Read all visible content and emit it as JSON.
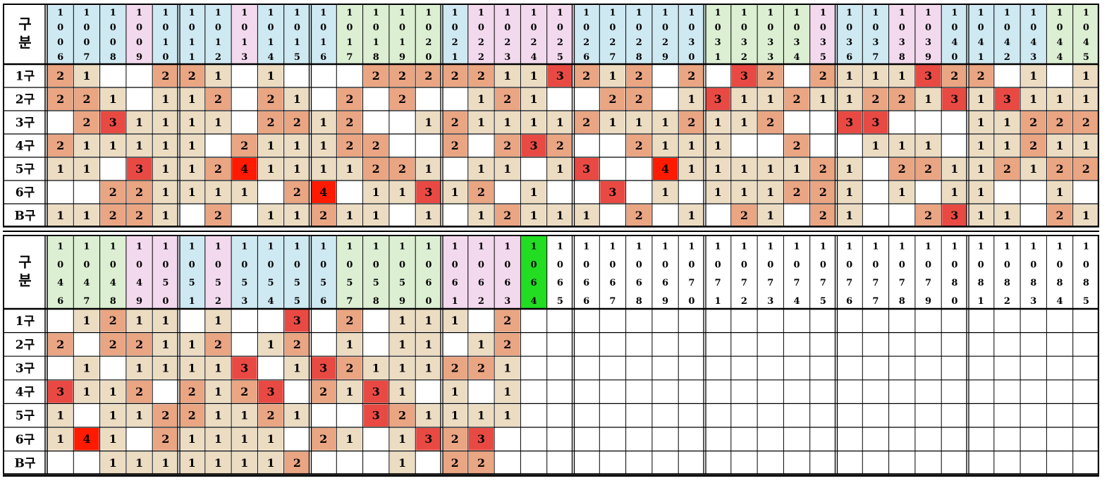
{
  "header_label": "구\n분",
  "row_labels": [
    "1구",
    "2구",
    "3구",
    "4구",
    "5구",
    "6구",
    "B구"
  ],
  "colors": {
    "blue": "#cfe9f2",
    "green": "#dcefd2",
    "pink": "#f3d9ee",
    "level1": "#ecdcc2",
    "level2": "#eaa583",
    "level3": "#e84a43",
    "level4": "#ff1a00",
    "current": "#22dd22",
    "grid": "#000000"
  },
  "blocks": [
    {
      "name": "upper-table",
      "columns": [
        "1006",
        "1007",
        "1008",
        "1009",
        "1010",
        "1011",
        "1012",
        "1013",
        "1014",
        "1015",
        "1016",
        "1017",
        "1018",
        "1019",
        "1020",
        "1021",
        "1022",
        "1023",
        "1024",
        "1025",
        "1026",
        "1027",
        "1028",
        "1029",
        "1030",
        "1031",
        "1032",
        "1033",
        "1034",
        "1035",
        "1036",
        "1037",
        "1038",
        "1039",
        "1040",
        "1041",
        "1042",
        "1043",
        "1044",
        "1045"
      ],
      "column_tints": [
        "b",
        "b",
        "b",
        "p",
        "b",
        "b",
        "b",
        "p",
        "b",
        "b",
        "b",
        "g",
        "g",
        "g",
        "g",
        "b",
        "p",
        "p",
        "p",
        "p",
        "b",
        "b",
        "b",
        "b",
        "b",
        "g",
        "g",
        "g",
        "g",
        "p",
        "b",
        "b",
        "p",
        "p",
        "b",
        "b",
        "b",
        "b",
        "g",
        "g"
      ],
      "current_column": null,
      "rows": [
        [
          2,
          1,
          0,
          0,
          2,
          2,
          1,
          0,
          1,
          0,
          0,
          0,
          2,
          2,
          2,
          2,
          2,
          1,
          1,
          3,
          2,
          1,
          2,
          0,
          2,
          0,
          3,
          2,
          0,
          2,
          1,
          1,
          1,
          3,
          2,
          2,
          0,
          1,
          0,
          1
        ],
        [
          2,
          2,
          1,
          0,
          1,
          1,
          2,
          0,
          2,
          1,
          0,
          2,
          0,
          2,
          0,
          0,
          1,
          2,
          1,
          0,
          0,
          2,
          2,
          0,
          1,
          3,
          1,
          1,
          2,
          1,
          1,
          2,
          2,
          1,
          3,
          1,
          3,
          1,
          1,
          1
        ],
        [
          0,
          2,
          3,
          1,
          1,
          1,
          1,
          0,
          2,
          2,
          1,
          2,
          0,
          0,
          1,
          2,
          1,
          1,
          1,
          1,
          2,
          1,
          1,
          1,
          2,
          1,
          1,
          2,
          0,
          0,
          3,
          3,
          0,
          0,
          0,
          1,
          1,
          2,
          2,
          2
        ],
        [
          2,
          1,
          1,
          1,
          1,
          1,
          0,
          2,
          1,
          1,
          1,
          2,
          2,
          0,
          0,
          2,
          0,
          2,
          3,
          2,
          0,
          0,
          2,
          1,
          1,
          1,
          0,
          0,
          2,
          0,
          0,
          1,
          1,
          1,
          0,
          1,
          1,
          2,
          1,
          1
        ],
        [
          1,
          1,
          0,
          3,
          1,
          1,
          2,
          4,
          1,
          1,
          1,
          1,
          2,
          2,
          1,
          0,
          1,
          1,
          0,
          1,
          3,
          0,
          0,
          4,
          1,
          1,
          1,
          1,
          1,
          2,
          1,
          0,
          2,
          2,
          1,
          1,
          2,
          1,
          2,
          2
        ],
        [
          0,
          0,
          2,
          2,
          1,
          1,
          1,
          1,
          0,
          2,
          4,
          0,
          1,
          1,
          3,
          1,
          2,
          0,
          1,
          0,
          0,
          3,
          0,
          1,
          0,
          1,
          1,
          1,
          2,
          2,
          1,
          0,
          1,
          0,
          1,
          1,
          0,
          0,
          1,
          0
        ],
        [
          1,
          1,
          2,
          2,
          1,
          0,
          2,
          0,
          1,
          1,
          2,
          1,
          1,
          0,
          1,
          0,
          1,
          2,
          1,
          1,
          1,
          0,
          2,
          0,
          1,
          0,
          2,
          1,
          0,
          2,
          1,
          0,
          0,
          2,
          3,
          1,
          1,
          0,
          2,
          1
        ]
      ]
    },
    {
      "name": "lower-table",
      "columns": [
        "1046",
        "1047",
        "1048",
        "1049",
        "1050",
        "1051",
        "1052",
        "1053",
        "1054",
        "1055",
        "1056",
        "1057",
        "1058",
        "1059",
        "1060",
        "1061",
        "1062",
        "1063",
        "1064",
        "1065",
        "1066",
        "1067",
        "1068",
        "1069",
        "1070",
        "1071",
        "1072",
        "1073",
        "1074",
        "1075",
        "1076",
        "1077",
        "1078",
        "1079",
        "1080",
        "1081",
        "1082",
        "1083",
        "1084",
        "1085"
      ],
      "column_tints": [
        "g",
        "g",
        "g",
        "p",
        "p",
        "b",
        "p",
        "b",
        "b",
        "b",
        "b",
        "g",
        "g",
        "g",
        "g",
        "p",
        "p",
        "p",
        "c",
        "w",
        "w",
        "w",
        "w",
        "w",
        "w",
        "w",
        "w",
        "w",
        "w",
        "w",
        "w",
        "w",
        "w",
        "w",
        "w",
        "w",
        "w",
        "w",
        "w",
        "w"
      ],
      "current_column": 18,
      "rows": [
        [
          0,
          1,
          2,
          1,
          1,
          0,
          1,
          0,
          0,
          3,
          0,
          2,
          0,
          1,
          1,
          1,
          0,
          2
        ],
        [
          2,
          0,
          2,
          2,
          1,
          1,
          2,
          0,
          1,
          2,
          0,
          1,
          0,
          1,
          1,
          0,
          1,
          2
        ],
        [
          0,
          1,
          0,
          1,
          1,
          1,
          1,
          3,
          0,
          1,
          3,
          2,
          1,
          1,
          1,
          2,
          2,
          1
        ],
        [
          3,
          1,
          1,
          2,
          0,
          2,
          1,
          2,
          3,
          0,
          2,
          1,
          3,
          1,
          0,
          1,
          0,
          1
        ],
        [
          1,
          0,
          1,
          1,
          2,
          2,
          1,
          1,
          2,
          1,
          0,
          0,
          3,
          2,
          1,
          1,
          1,
          1
        ],
        [
          1,
          4,
          1,
          0,
          2,
          1,
          1,
          1,
          1,
          0,
          2,
          1,
          0,
          1,
          3,
          2,
          3,
          0
        ],
        [
          0,
          0,
          1,
          1,
          1,
          1,
          1,
          1,
          1,
          2,
          0,
          0,
          0,
          1,
          0,
          2,
          2,
          0
        ]
      ]
    }
  ]
}
